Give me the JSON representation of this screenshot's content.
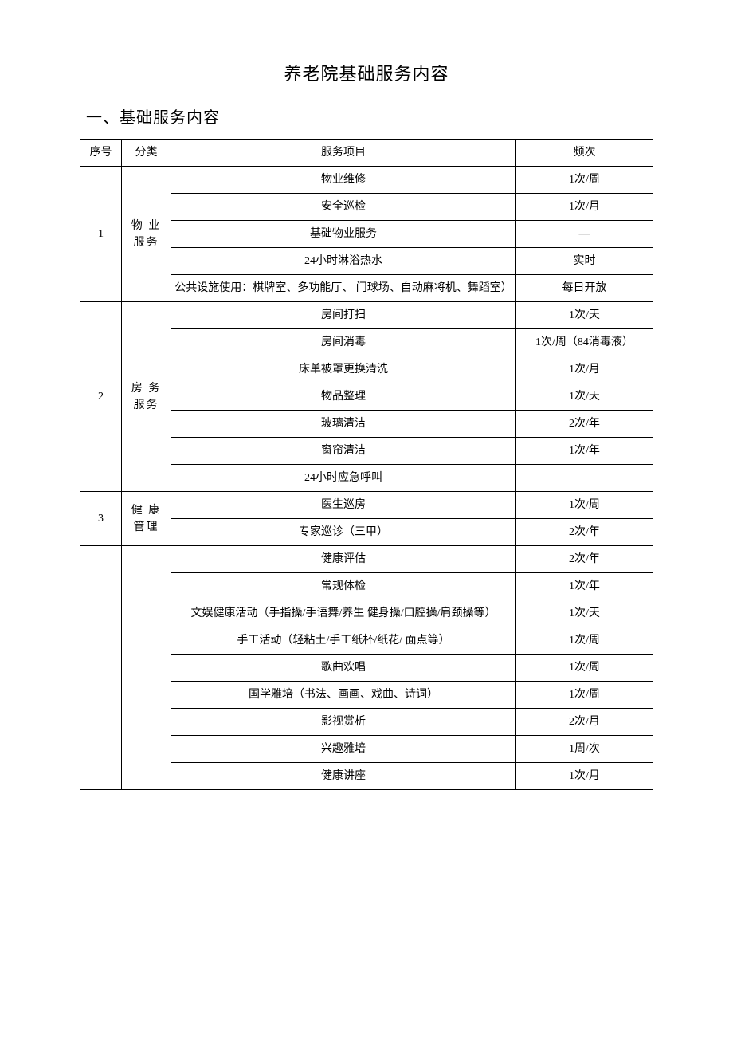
{
  "title": "养老院基础服务内容",
  "section_heading": "一、基础服务内容",
  "columns": {
    "seq": "序号",
    "category": "分类",
    "item": "服务项目",
    "freq": "频次"
  },
  "groups": [
    {
      "seq": "1",
      "category": "物 业\n服务",
      "rows": [
        {
          "item": "物业维修",
          "freq": "1次/周"
        },
        {
          "item": "安全巡检",
          "freq": "1次/月"
        },
        {
          "item": "基础物业服务",
          "freq": "—",
          "tall": true
        },
        {
          "item": "24小时淋浴热水",
          "freq": "实时",
          "tall": true
        },
        {
          "item": "公共设施使用：棋牌室、多功能厅、 门球场、自动麻将机、舞蹈室）",
          "freq": "每日开放",
          "long": true
        }
      ]
    },
    {
      "seq": "2",
      "category": "房 务\n服务",
      "rows": [
        {
          "item": "房间打扫",
          "freq": "1次/天"
        },
        {
          "item": "房间消毒",
          "freq": "1次/周（84消毒液）"
        },
        {
          "item": "床单被罩更换清洗",
          "freq": "1次/月"
        },
        {
          "item": "物品整理",
          "freq": "1次/天"
        },
        {
          "item": "玻璃清洁",
          "freq": "2次/年"
        },
        {
          "item": "窗帘清洁",
          "freq": "1次/年"
        },
        {
          "item": "24小时应急呼叫",
          "freq": ""
        }
      ]
    },
    {
      "seq": "3",
      "category": "健 康\n管理",
      "rows": [
        {
          "item": "医生巡房",
          "freq": "1次/周"
        },
        {
          "item": "专家巡诊（三甲）",
          "freq": "2次/年"
        }
      ]
    },
    {
      "seq": "",
      "category": "",
      "rows": [
        {
          "item": "健康评估",
          "freq": "2次/年"
        },
        {
          "item": "常规体检",
          "freq": "1次/年"
        }
      ]
    },
    {
      "seq": "",
      "category": "",
      "rows": [
        {
          "item": "文娱健康活动（手指操/手语舞/养生 健身操/口腔操/肩颈操等）",
          "freq": "1次/天",
          "long": true
        },
        {
          "item": "手工活动（轻粘土/手工纸杯/纸花/  面点等）",
          "freq": "1次/周",
          "long": true
        },
        {
          "item": "歌曲欢唱",
          "freq": "1次/周"
        },
        {
          "item": "国学雅培（书法、画画、戏曲、诗词）",
          "freq": "1次/周"
        },
        {
          "item": "影视赏析",
          "freq": "2次/月"
        },
        {
          "item": "兴趣雅培",
          "freq": "1周/次"
        },
        {
          "item": "健康讲座",
          "freq": "1次/月"
        }
      ]
    }
  ],
  "style": {
    "font_family": "SimSun",
    "body_fontsize": 14,
    "title_fontsize": 22,
    "heading_fontsize": 20,
    "border_color": "#000000",
    "background_color": "#ffffff",
    "text_color": "#000000",
    "col_widths": {
      "seq": 52,
      "category": 62,
      "freq": 172
    }
  }
}
